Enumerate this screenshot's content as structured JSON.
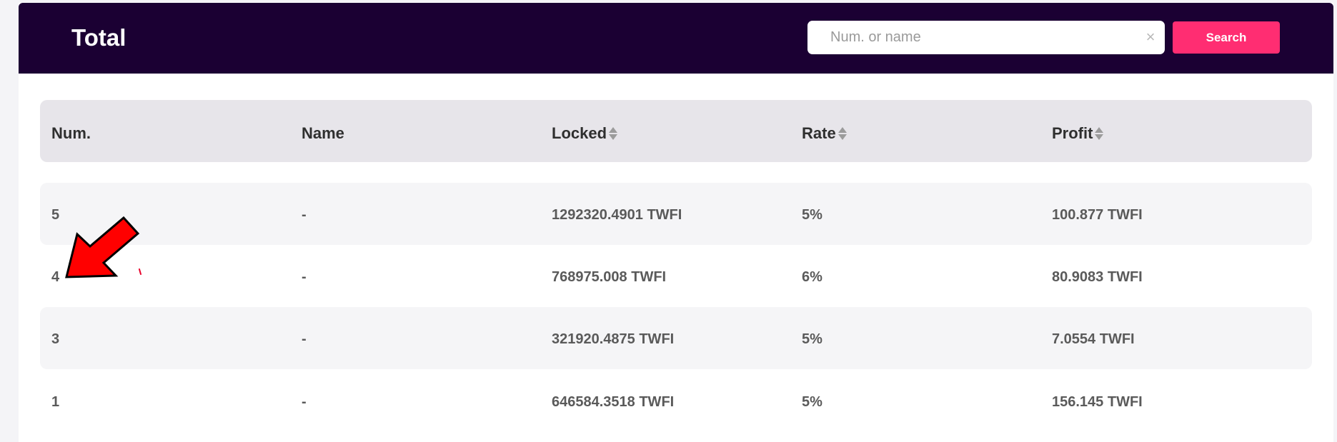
{
  "header": {
    "title": "Total",
    "search": {
      "placeholder": "Num. or name",
      "value": "",
      "clear_icon": "×",
      "button_label": "Search"
    }
  },
  "table": {
    "columns": [
      {
        "label": "Num.",
        "sortable": false
      },
      {
        "label": "Name",
        "sortable": false
      },
      {
        "label": "Locked",
        "sortable": true
      },
      {
        "label": "Rate",
        "sortable": true
      },
      {
        "label": "Profit",
        "sortable": true
      }
    ],
    "rows": [
      {
        "num": "5",
        "name": "-",
        "locked": "1292320.4901 TWFI",
        "rate": "5%",
        "profit": "100.877 TWFI"
      },
      {
        "num": "4",
        "name": "-",
        "locked": "768975.008 TWFI",
        "rate": "6%",
        "profit": "80.9083 TWFI"
      },
      {
        "num": "3",
        "name": "-",
        "locked": "321920.4875 TWFI",
        "rate": "5%",
        "profit": "7.0554 TWFI"
      },
      {
        "num": "1",
        "name": "-",
        "locked": "646584.3518 TWFI",
        "rate": "5%",
        "profit": "156.145 TWFI"
      }
    ]
  },
  "annotation": {
    "icon": "red-arrow-icon",
    "color": "#ff0000"
  },
  "colors": {
    "header_bg": "#1b0033",
    "accent": "#ff2d72",
    "head_row_bg": "#e7e5ea",
    "row_shade": "#f5f5f7"
  }
}
